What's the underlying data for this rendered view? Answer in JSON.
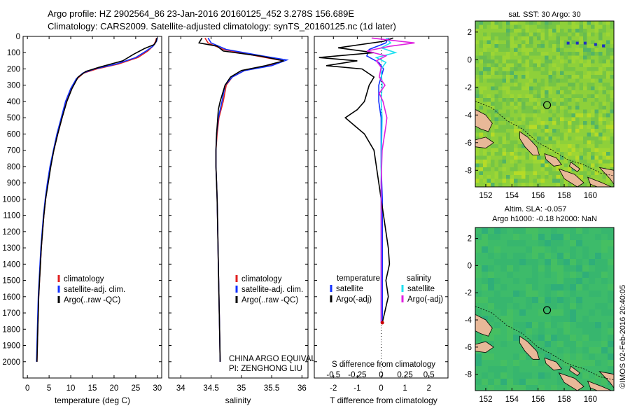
{
  "titles": {
    "line1": "Argo profile: HZ 2902564_86 23-Jan-2016 20160125_452 3.278S 156.689E",
    "line2": "Climatology: CARS2009. Satellite-adjusted climatology: synTS_20160125.nc (1d later)"
  },
  "credit": "©IMOS 02-Feb-2016 20:40:05",
  "colors": {
    "climatology": "#e02020",
    "satellite": "#1030ff",
    "argo": "#000000",
    "sal_satellite": "#20e0f0",
    "sal_argo": "#e020e0",
    "land": "#e8b898",
    "sst_bg": "#8ed03a",
    "sla_bg": "#3dbb6a"
  },
  "chart_data": [
    {
      "type": "line",
      "panel": "temperature",
      "xlabel": "temperature (deg C)",
      "ylabel": "",
      "xlim": [
        -1,
        31
      ],
      "ylim": [
        2100,
        0
      ],
      "xticks": [
        0,
        5,
        10,
        15,
        20,
        25,
        30
      ],
      "yticks": [
        0,
        100,
        200,
        300,
        400,
        500,
        600,
        700,
        800,
        900,
        1000,
        1100,
        1200,
        1300,
        1400,
        1500,
        1600,
        1700,
        1800,
        1900,
        2000
      ],
      "legend": {
        "placement": "lower-left",
        "entries": [
          "climatology",
          "satellite-adj. clim.",
          "Argo(..raw -QC)"
        ]
      },
      "series": [
        {
          "name": "climatology",
          "color": "climatology",
          "points": [
            [
              29.8,
              10
            ],
            [
              29.6,
              30
            ],
            [
              29.0,
              60
            ],
            [
              27.8,
              90
            ],
            [
              25.5,
              130
            ],
            [
              21.0,
              170
            ],
            [
              16.0,
              200
            ],
            [
              13.0,
              225
            ],
            [
              11.5,
              260
            ],
            [
              10.2,
              320
            ],
            [
              9.0,
              400
            ],
            [
              8.0,
              500
            ],
            [
              7.0,
              600
            ],
            [
              6.1,
              700
            ],
            [
              5.3,
              800
            ],
            [
              4.7,
              900
            ],
            [
              4.2,
              1000
            ],
            [
              3.8,
              1100
            ],
            [
              3.5,
              1200
            ],
            [
              3.2,
              1300
            ],
            [
              3.0,
              1400
            ],
            [
              2.8,
              1500
            ],
            [
              2.6,
              1600
            ],
            [
              2.5,
              1700
            ],
            [
              2.4,
              1800
            ],
            [
              2.3,
              1900
            ],
            [
              2.2,
              2000
            ]
          ]
        },
        {
          "name": "satellite-adj. clim.",
          "color": "satellite",
          "points": [
            [
              30.0,
              10
            ],
            [
              29.8,
              30
            ],
            [
              29.0,
              60
            ],
            [
              27.4,
              90
            ],
            [
              25.0,
              130
            ],
            [
              20.5,
              170
            ],
            [
              15.5,
              200
            ],
            [
              12.8,
              225
            ],
            [
              11.3,
              260
            ],
            [
              10.0,
              320
            ],
            [
              8.8,
              400
            ],
            [
              7.8,
              500
            ],
            [
              6.8,
              600
            ],
            [
              6.0,
              700
            ],
            [
              5.2,
              800
            ],
            [
              4.6,
              900
            ],
            [
              4.1,
              1000
            ],
            [
              3.7,
              1100
            ],
            [
              3.4,
              1200
            ],
            [
              3.1,
              1300
            ],
            [
              2.9,
              1400
            ],
            [
              2.7,
              1500
            ],
            [
              2.5,
              1600
            ],
            [
              2.4,
              1700
            ],
            [
              2.3,
              1800
            ],
            [
              2.2,
              1900
            ],
            [
              2.1,
              2000
            ]
          ]
        },
        {
          "name": "Argo(..raw -QC)",
          "color": "argo",
          "points": [
            [
              29.9,
              10
            ],
            [
              29.7,
              30
            ],
            [
              29.3,
              50
            ],
            [
              27.0,
              75
            ],
            [
              24.5,
              110
            ],
            [
              22.0,
              150
            ],
            [
              16.5,
              190
            ],
            [
              13.5,
              215
            ],
            [
              11.7,
              250
            ],
            [
              10.3,
              320
            ],
            [
              9.1,
              400
            ],
            [
              8.0,
              500
            ],
            [
              7.0,
              600
            ],
            [
              6.1,
              700
            ],
            [
              5.4,
              800
            ],
            [
              4.8,
              900
            ],
            [
              4.2,
              1000
            ],
            [
              3.8,
              1100
            ],
            [
              3.5,
              1200
            ],
            [
              3.2,
              1300
            ],
            [
              3.0,
              1400
            ],
            [
              2.8,
              1500
            ],
            [
              2.6,
              1600
            ],
            [
              2.5,
              1700
            ],
            [
              2.4,
              1800
            ],
            [
              2.3,
              1900
            ],
            [
              2.2,
              2000
            ]
          ]
        }
      ]
    },
    {
      "type": "line",
      "panel": "salinity",
      "xlabel": "salinity",
      "ylabel": "",
      "xlim": [
        33.8,
        36.1
      ],
      "ylim": [
        2100,
        0
      ],
      "xticks": [
        34,
        34.5,
        35,
        35.5,
        36
      ],
      "legend": {
        "placement": "lower-left",
        "entries": [
          "climatology",
          "satellite-adj. clim.",
          "Argo(..raw -QC)"
        ]
      },
      "annotation": [
        "CHINA ARGO EQUIVALENT",
        "PI: ZENGHONG LIU"
      ],
      "series": [
        {
          "name": "climatology",
          "color": "climatology",
          "points": [
            [
              34.4,
              10
            ],
            [
              34.45,
              40
            ],
            [
              34.7,
              80
            ],
            [
              35.25,
              120
            ],
            [
              35.7,
              150
            ],
            [
              35.45,
              180
            ],
            [
              35.05,
              210
            ],
            [
              34.85,
              250
            ],
            [
              34.75,
              300
            ],
            [
              34.7,
              400
            ],
            [
              34.63,
              500
            ],
            [
              34.6,
              600
            ],
            [
              34.58,
              700
            ],
            [
              34.58,
              800
            ],
            [
              34.59,
              900
            ],
            [
              34.6,
              1000
            ],
            [
              34.61,
              1200
            ],
            [
              34.62,
              1400
            ],
            [
              34.63,
              1600
            ],
            [
              34.64,
              1800
            ],
            [
              34.65,
              2000
            ]
          ]
        },
        {
          "name": "satellite-adj. clim.",
          "color": "satellite",
          "points": [
            [
              34.45,
              10
            ],
            [
              34.5,
              40
            ],
            [
              34.75,
              80
            ],
            [
              35.35,
              120
            ],
            [
              35.75,
              145
            ],
            [
              35.5,
              180
            ],
            [
              35.05,
              210
            ],
            [
              34.85,
              250
            ],
            [
              34.73,
              300
            ],
            [
              34.68,
              400
            ],
            [
              34.62,
              500
            ],
            [
              34.59,
              600
            ],
            [
              34.58,
              700
            ],
            [
              34.58,
              800
            ],
            [
              34.59,
              900
            ],
            [
              34.6,
              1000
            ],
            [
              34.61,
              1200
            ],
            [
              34.62,
              1400
            ],
            [
              34.63,
              1600
            ],
            [
              34.64,
              1800
            ],
            [
              34.65,
              2000
            ]
          ]
        },
        {
          "name": "Argo(..raw -QC)",
          "color": "argo",
          "points": [
            [
              34.35,
              10
            ],
            [
              34.3,
              40
            ],
            [
              34.6,
              60
            ],
            [
              34.7,
              90
            ],
            [
              35.3,
              120
            ],
            [
              35.7,
              150
            ],
            [
              35.4,
              180
            ],
            [
              35.0,
              210
            ],
            [
              34.82,
              250
            ],
            [
              34.73,
              300
            ],
            [
              34.65,
              400
            ],
            [
              34.62,
              450
            ],
            [
              34.61,
              500
            ],
            [
              34.59,
              600
            ],
            [
              34.58,
              700
            ],
            [
              34.58,
              800
            ],
            [
              34.59,
              900
            ],
            [
              34.6,
              1000
            ],
            [
              34.61,
              1200
            ],
            [
              34.62,
              1400
            ],
            [
              34.63,
              1600
            ],
            [
              34.64,
              1800
            ],
            [
              34.65,
              2000
            ]
          ]
        }
      ]
    },
    {
      "type": "line",
      "panel": "difference",
      "xlabel_bottom": "T difference from climatology",
      "xlabel_top": "S difference from climatology",
      "xlim": [
        -2.8,
        2.8
      ],
      "ylim": [
        2100,
        0
      ],
      "xticks_bottom": [
        -2,
        -1,
        0,
        1,
        2
      ],
      "xticks_top": [
        -0.5,
        -0.25,
        0,
        0.25,
        0.5
      ],
      "xticks_top_labels": [
        "-0.5",
        "-0.25",
        "0",
        "0.25",
        "0.5"
      ],
      "xlim_top": [
        -0.7,
        0.7
      ],
      "legend": {
        "placement": "lower",
        "headers": [
          "temperature",
          "salinity"
        ],
        "entries": [
          "satellite",
          "Argo(-adj)",
          "satellite",
          "Argo(-adj)"
        ]
      },
      "series": [
        {
          "name": "temperature satellite",
          "color": "satellite",
          "scale": "T",
          "points": [
            [
              0.3,
              10
            ],
            [
              0.2,
              40
            ],
            [
              -0.5,
              80
            ],
            [
              -0.6,
              120
            ],
            [
              -0.1,
              160
            ],
            [
              0.1,
              200
            ],
            [
              -0.1,
              300
            ],
            [
              -0.1,
              400
            ],
            [
              0.0,
              500
            ],
            [
              0.0,
              600
            ],
            [
              0.0,
              800
            ],
            [
              0.05,
              1000
            ],
            [
              0.05,
              1200
            ],
            [
              0.05,
              1400
            ],
            [
              0.05,
              1600
            ],
            [
              0.05,
              1760
            ]
          ]
        },
        {
          "name": "temperature Argo(-adj)",
          "color": "argo",
          "scale": "T",
          "points": [
            [
              0.5,
              10
            ],
            [
              0.1,
              30
            ],
            [
              -1.8,
              70
            ],
            [
              -0.3,
              100
            ],
            [
              -2.6,
              130
            ],
            [
              -1.0,
              150
            ],
            [
              -2.3,
              180
            ],
            [
              -0.8,
              200
            ],
            [
              -0.3,
              250
            ],
            [
              -0.5,
              300
            ],
            [
              -0.7,
              400
            ],
            [
              -1.0,
              450
            ],
            [
              -1.5,
              500
            ],
            [
              -0.7,
              600
            ],
            [
              -0.3,
              700
            ],
            [
              -0.2,
              800
            ],
            [
              0.0,
              1000
            ],
            [
              0.1,
              1100
            ],
            [
              0.2,
              1200
            ],
            [
              0.3,
              1300
            ],
            [
              0.35,
              1400
            ],
            [
              0.2,
              1500
            ],
            [
              0.3,
              1600
            ],
            [
              0.05,
              1760
            ]
          ]
        },
        {
          "name": "salinity satellite",
          "color": "sal_satellite",
          "scale": "S",
          "points": [
            [
              0.05,
              10
            ],
            [
              0.1,
              40
            ],
            [
              0.0,
              70
            ],
            [
              0.15,
              100
            ],
            [
              -0.05,
              130
            ],
            [
              0.05,
              160
            ],
            [
              0.0,
              200
            ],
            [
              0.01,
              300
            ],
            [
              0.0,
              400
            ],
            [
              0.01,
              500
            ],
            [
              0.0,
              800
            ],
            [
              0.0,
              1200
            ],
            [
              0.0,
              1600
            ],
            [
              0.0,
              1760
            ]
          ]
        },
        {
          "name": "salinity Argo(-adj)",
          "color": "sal_argo",
          "scale": "S",
          "points": [
            [
              -0.1,
              10
            ],
            [
              0.35,
              40
            ],
            [
              0.1,
              60
            ],
            [
              -0.15,
              90
            ],
            [
              0.05,
              120
            ],
            [
              -0.05,
              150
            ],
            [
              0.0,
              190
            ],
            [
              -0.02,
              250
            ],
            [
              0.04,
              300
            ],
            [
              -0.02,
              350
            ],
            [
              0.02,
              400
            ],
            [
              0.06,
              500
            ],
            [
              0.05,
              550
            ],
            [
              0.01,
              700
            ],
            [
              0.0,
              900
            ],
            [
              0.0,
              1200
            ],
            [
              0.0,
              1600
            ],
            [
              0.0,
              1760
            ]
          ]
        }
      ]
    },
    {
      "type": "heatmap",
      "panel": "sst-map",
      "title": "sat. SST: 30 Argo: 30",
      "xlim": [
        151.2,
        161.8
      ],
      "ylim": [
        -9.2,
        2.8
      ],
      "xticks": [
        152,
        154,
        156,
        158,
        160
      ],
      "yticks": [
        -8,
        -6,
        -4,
        -2,
        0,
        2
      ],
      "marker": [
        156.689,
        -3.278
      ]
    },
    {
      "type": "heatmap",
      "panel": "sla-map",
      "title_line1": "Altim. SLA: -0.057",
      "title_line2": "Argo h1000: -0.18 h2000: NaN",
      "xlim": [
        151.2,
        161.8
      ],
      "ylim": [
        -9.2,
        2.8
      ],
      "xticks": [
        152,
        154,
        156,
        158,
        160
      ],
      "yticks": [
        -8,
        -6,
        -4,
        -2,
        0,
        2
      ],
      "marker": [
        156.689,
        -3.278
      ]
    }
  ]
}
